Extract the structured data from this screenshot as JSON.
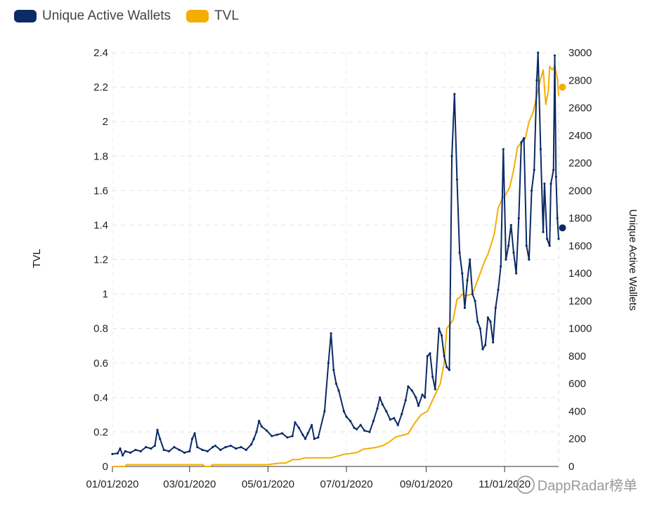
{
  "chart_data": {
    "type": "line",
    "legend": [
      {
        "name": "Unique Active Wallets",
        "color": "#0b2a66"
      },
      {
        "name": "TVL",
        "color": "#f5ad00"
      }
    ],
    "left_axis": {
      "title": "TVL",
      "ylim": [
        0,
        2.4
      ],
      "ticks": [
        "0",
        "0.2",
        "0.4",
        "0.6",
        "0.8",
        "1",
        "1.2",
        "1.4",
        "1.6",
        "1.8",
        "2",
        "2.2",
        "2.4"
      ]
    },
    "right_axis": {
      "title": "Unique Active Wallets",
      "ylim": [
        0,
        3000
      ],
      "ticks": [
        "0",
        "200",
        "400",
        "600",
        "800",
        "1000",
        "1200",
        "1400",
        "1600",
        "1800",
        "2000",
        "2200",
        "2400",
        "2600",
        "2800",
        "3000"
      ]
    },
    "x_ticks": [
      "01/01/2020",
      "03/01/2020",
      "05/01/2020",
      "07/01/2020",
      "09/01/2020",
      "11/01/2020"
    ],
    "x_range_days": [
      0,
      347
    ],
    "x_tick_days": [
      0,
      60,
      121,
      182,
      244,
      305
    ],
    "series": [
      {
        "name": "TVL",
        "axis": "left",
        "color": "#f5ad00",
        "points": [
          [
            0,
            0
          ],
          [
            10,
            0
          ],
          [
            11,
            0.01
          ],
          [
            25,
            0.01
          ],
          [
            55,
            0.01
          ],
          [
            70,
            0.01
          ],
          [
            72,
            0
          ],
          [
            76,
            0
          ],
          [
            78,
            0.01
          ],
          [
            100,
            0.01
          ],
          [
            120,
            0.01
          ],
          [
            131,
            0.02
          ],
          [
            135,
            0.02
          ],
          [
            140,
            0.04
          ],
          [
            145,
            0.04
          ],
          [
            150,
            0.05
          ],
          [
            170,
            0.05
          ],
          [
            175,
            0.06
          ],
          [
            180,
            0.07
          ],
          [
            190,
            0.08
          ],
          [
            195,
            0.1
          ],
          [
            205,
            0.11
          ],
          [
            210,
            0.12
          ],
          [
            215,
            0.14
          ],
          [
            220,
            0.17
          ],
          [
            225,
            0.18
          ],
          [
            230,
            0.19
          ],
          [
            235,
            0.25
          ],
          [
            240,
            0.3
          ],
          [
            245,
            0.32
          ],
          [
            250,
            0.4
          ],
          [
            255,
            0.48
          ],
          [
            258,
            0.6
          ],
          [
            260,
            0.8
          ],
          [
            262,
            0.82
          ],
          [
            265,
            0.85
          ],
          [
            268,
            0.97
          ],
          [
            270,
            0.98
          ],
          [
            272,
            1.0
          ],
          [
            275,
            0.99
          ],
          [
            280,
            1.0
          ],
          [
            285,
            1.1
          ],
          [
            290,
            1.2
          ],
          [
            292,
            1.23
          ],
          [
            295,
            1.3
          ],
          [
            297,
            1.35
          ],
          [
            300,
            1.5
          ],
          [
            303,
            1.55
          ],
          [
            306,
            1.58
          ],
          [
            309,
            1.62
          ],
          [
            312,
            1.72
          ],
          [
            315,
            1.85
          ],
          [
            318,
            1.88
          ],
          [
            321,
            1.9
          ],
          [
            324,
            2.0
          ],
          [
            327,
            2.05
          ],
          [
            330,
            2.15
          ],
          [
            332,
            2.22
          ],
          [
            335,
            2.3
          ],
          [
            337,
            2.1
          ],
          [
            339,
            2.18
          ],
          [
            340,
            2.32
          ],
          [
            342,
            2.3
          ],
          [
            344,
            2.32
          ],
          [
            346,
            2.25
          ],
          [
            347,
            2.15
          ]
        ],
        "end_marker": [
          350,
          2.2
        ]
      },
      {
        "name": "Unique Active Wallets",
        "axis": "right",
        "color": "#0b2a66",
        "points": [
          [
            0,
            90
          ],
          [
            4,
            95
          ],
          [
            6,
            130
          ],
          [
            8,
            80
          ],
          [
            10,
            110
          ],
          [
            14,
            100
          ],
          [
            18,
            120
          ],
          [
            22,
            110
          ],
          [
            26,
            140
          ],
          [
            30,
            130
          ],
          [
            33,
            150
          ],
          [
            35,
            265
          ],
          [
            37,
            200
          ],
          [
            40,
            120
          ],
          [
            44,
            110
          ],
          [
            48,
            140
          ],
          [
            52,
            120
          ],
          [
            56,
            100
          ],
          [
            60,
            110
          ],
          [
            62,
            200
          ],
          [
            64,
            240
          ],
          [
            66,
            140
          ],
          [
            70,
            120
          ],
          [
            74,
            110
          ],
          [
            78,
            140
          ],
          [
            80,
            150
          ],
          [
            84,
            120
          ],
          [
            88,
            140
          ],
          [
            92,
            150
          ],
          [
            96,
            130
          ],
          [
            100,
            140
          ],
          [
            104,
            120
          ],
          [
            108,
            160
          ],
          [
            110,
            200
          ],
          [
            112,
            250
          ],
          [
            114,
            330
          ],
          [
            116,
            290
          ],
          [
            120,
            260
          ],
          [
            124,
            220
          ],
          [
            128,
            230
          ],
          [
            132,
            240
          ],
          [
            136,
            210
          ],
          [
            140,
            220
          ],
          [
            142,
            320
          ],
          [
            145,
            280
          ],
          [
            148,
            230
          ],
          [
            150,
            200
          ],
          [
            152,
            240
          ],
          [
            155,
            300
          ],
          [
            157,
            200
          ],
          [
            160,
            210
          ],
          [
            165,
            400
          ],
          [
            168,
            750
          ],
          [
            170,
            965
          ],
          [
            172,
            700
          ],
          [
            174,
            600
          ],
          [
            176,
            550
          ],
          [
            180,
            400
          ],
          [
            182,
            360
          ],
          [
            185,
            330
          ],
          [
            188,
            280
          ],
          [
            190,
            270
          ],
          [
            193,
            300
          ],
          [
            196,
            260
          ],
          [
            200,
            250
          ],
          [
            203,
            330
          ],
          [
            206,
            420
          ],
          [
            208,
            500
          ],
          [
            210,
            450
          ],
          [
            213,
            400
          ],
          [
            216,
            340
          ],
          [
            219,
            350
          ],
          [
            222,
            300
          ],
          [
            225,
            380
          ],
          [
            228,
            480
          ],
          [
            230,
            580
          ],
          [
            233,
            550
          ],
          [
            236,
            500
          ],
          [
            238,
            440
          ],
          [
            241,
            520
          ],
          [
            243,
            500
          ],
          [
            245,
            800
          ],
          [
            247,
            820
          ],
          [
            249,
            650
          ],
          [
            251,
            560
          ],
          [
            254,
            1000
          ],
          [
            256,
            950
          ],
          [
            258,
            800
          ],
          [
            260,
            720
          ],
          [
            262,
            700
          ],
          [
            264,
            2250
          ],
          [
            266,
            2700
          ],
          [
            268,
            2080
          ],
          [
            270,
            1550
          ],
          [
            272,
            1400
          ],
          [
            274,
            1150
          ],
          [
            276,
            1350
          ],
          [
            278,
            1500
          ],
          [
            280,
            1250
          ],
          [
            282,
            1200
          ],
          [
            284,
            1050
          ],
          [
            286,
            1000
          ],
          [
            288,
            850
          ],
          [
            290,
            880
          ],
          [
            292,
            1080
          ],
          [
            294,
            1050
          ],
          [
            296,
            900
          ],
          [
            298,
            1150
          ],
          [
            300,
            1280
          ],
          [
            302,
            1450
          ],
          [
            304,
            2300
          ],
          [
            306,
            1500
          ],
          [
            308,
            1600
          ],
          [
            310,
            1750
          ],
          [
            312,
            1550
          ],
          [
            314,
            1400
          ],
          [
            316,
            1800
          ],
          [
            318,
            2350
          ],
          [
            320,
            2380
          ],
          [
            322,
            1600
          ],
          [
            324,
            1500
          ],
          [
            326,
            2000
          ],
          [
            328,
            2150
          ],
          [
            330,
            2800
          ],
          [
            331,
            3000
          ],
          [
            333,
            2300
          ],
          [
            335,
            1700
          ],
          [
            336,
            2050
          ],
          [
            338,
            1650
          ],
          [
            340,
            1600
          ],
          [
            341,
            2050
          ],
          [
            343,
            2150
          ],
          [
            344,
            2980
          ],
          [
            345,
            2100
          ],
          [
            346,
            1800
          ],
          [
            347,
            1650
          ]
        ],
        "end_marker": [
          350,
          1730
        ]
      }
    ]
  },
  "watermark": {
    "text": "DappRadar榜单"
  }
}
